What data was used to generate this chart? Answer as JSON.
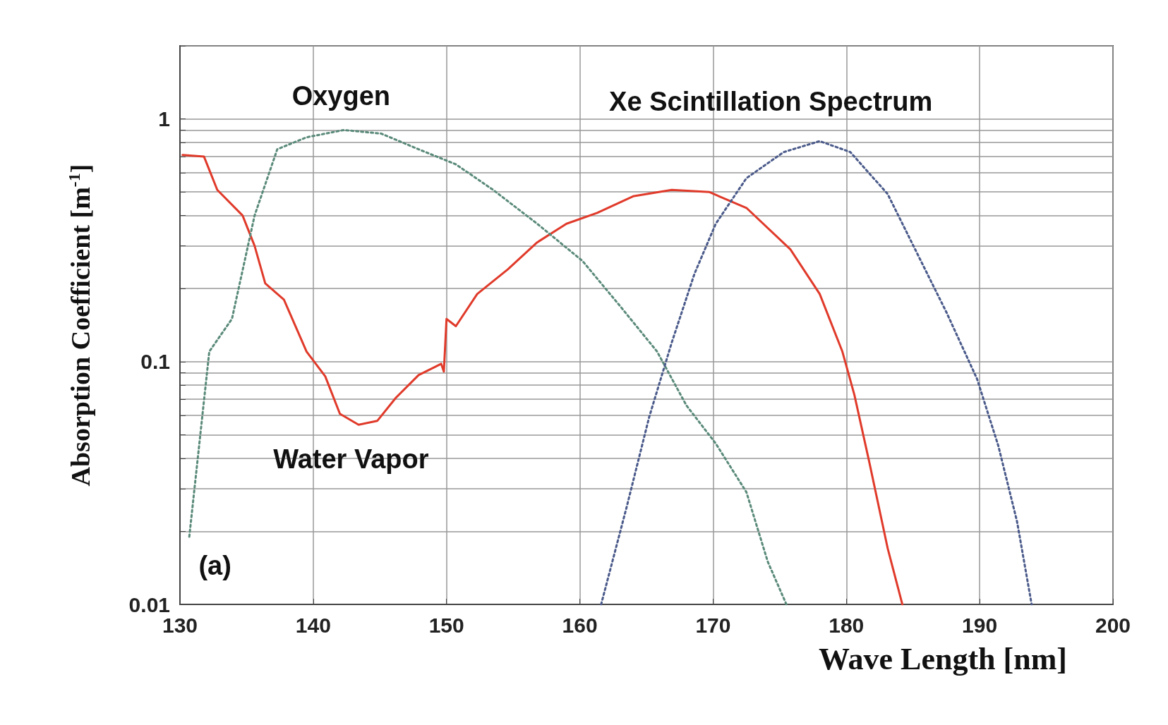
{
  "chart_data": {
    "type": "line",
    "xlabel": "Wave Length [nm]",
    "ylabel": "Absorption Coefficient [m$^{-1}$]",
    "log": "y",
    "grid": true,
    "marker": "none",
    "xlim": [
      130,
      200
    ],
    "xticks": [
      130,
      140,
      150,
      160,
      170,
      180,
      190,
      200
    ],
    "ylim": [
      0.01,
      2
    ],
    "yticks": [
      0.01,
      {
        "value": 0.02,
        "label": null
      },
      {
        "value": 0.03,
        "label": null
      },
      {
        "value": 0.04,
        "label": null
      },
      {
        "value": 0.05,
        "label": null
      },
      {
        "value": 0.06,
        "label": null
      },
      {
        "value": 0.07,
        "label": null
      },
      {
        "value": 0.08,
        "label": null
      },
      {
        "value": 0.09,
        "label": null
      },
      0.1,
      {
        "value": 0.2,
        "label": null
      },
      {
        "value": 0.3,
        "label": null
      },
      {
        "value": 0.4,
        "label": null
      },
      {
        "value": 0.5,
        "label": null
      },
      {
        "value": 0.6,
        "label": null
      },
      {
        "value": 0.7,
        "label": null
      },
      {
        "value": 0.8,
        "label": null
      },
      {
        "value": 0.9,
        "label": null
      },
      1,
      {
        "value": 2,
        "label": null
      }
    ],
    "series": [
      {
        "color": "#e03a2a",
        "line_style": "solid",
        "x": [
          130.2,
          131.8,
          132.8,
          134.7,
          135.6,
          136.4,
          137.8,
          139.5,
          140.9,
          142,
          143.4,
          144.8,
          146.2,
          147.9,
          149.6,
          149.8,
          150,
          150.7,
          152.3,
          154.6,
          156.8,
          159,
          161.3,
          164,
          166.9,
          169.7,
          172.5,
          175.8,
          178,
          179.7,
          180.6,
          181.7,
          183.1,
          184.2
        ],
        "values": [
          0.71,
          0.7,
          0.51,
          0.4,
          0.3,
          0.21,
          0.18,
          0.11,
          0.087,
          0.061,
          0.055,
          0.057,
          0.071,
          0.088,
          0.098,
          0.091,
          0.15,
          0.14,
          0.19,
          0.24,
          0.31,
          0.37,
          0.41,
          0.48,
          0.51,
          0.5,
          0.43,
          0.29,
          0.19,
          0.11,
          0.073,
          0.039,
          0.017,
          0.01
        ]
      },
      {
        "color": "#5a8a7a",
        "line_style": "dotted",
        "x": [
          130.7,
          132.2,
          133.9,
          135.6,
          137.3,
          139.5,
          142.3,
          145.1,
          147.9,
          150.7,
          153.5,
          156.8,
          160.2,
          163,
          165.8,
          168,
          170.2,
          172.5,
          174.1,
          175.5
        ],
        "values": [
          0.019,
          0.11,
          0.15,
          0.4,
          0.75,
          0.84,
          0.9,
          0.87,
          0.75,
          0.65,
          0.51,
          0.37,
          0.26,
          0.17,
          0.11,
          0.066,
          0.046,
          0.029,
          0.015,
          0.01
        ]
      },
      {
        "color": "#4a5a8a",
        "line_style": "dotted",
        "x": [
          161.6,
          163.5,
          165.2,
          166.9,
          168.6,
          170.2,
          172.5,
          175.3,
          178,
          180.3,
          183.1,
          185.3,
          187.5,
          189.8,
          191.4,
          192.8,
          193.9
        ],
        "values": [
          0.01,
          0.025,
          0.059,
          0.12,
          0.23,
          0.37,
          0.57,
          0.73,
          0.81,
          0.73,
          0.49,
          0.28,
          0.16,
          0.085,
          0.045,
          0.022,
          0.01
        ]
      }
    ],
    "annotations": [
      "Oxygen",
      "Xe Scintillation Spectrum",
      "Water Vapor",
      "(a)"
    ]
  }
}
